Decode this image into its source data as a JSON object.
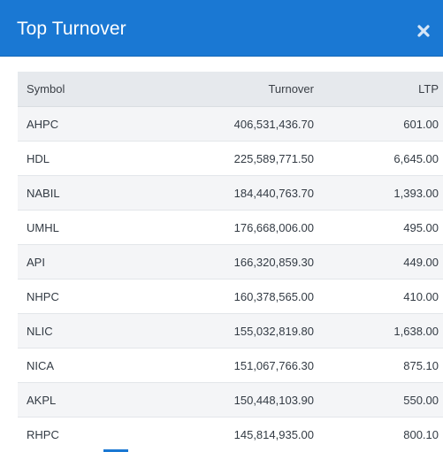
{
  "modal": {
    "title": "Top Turnover",
    "close_icon": "close-icon"
  },
  "colors": {
    "header_bg": "#1a78d3",
    "header_text": "#ffffff",
    "table_header_bg": "#e6e9ed",
    "row_alt_bg": "#f4f5f7"
  },
  "table": {
    "columns": [
      "Symbol",
      "Turnover",
      "LTP"
    ],
    "rows": [
      {
        "symbol": "AHPC",
        "turnover": "406,531,436.70",
        "ltp": "601.00"
      },
      {
        "symbol": "HDL",
        "turnover": "225,589,771.50",
        "ltp": "6,645.00"
      },
      {
        "symbol": "NABIL",
        "turnover": "184,440,763.70",
        "ltp": "1,393.00"
      },
      {
        "symbol": "UMHL",
        "turnover": "176,668,006.00",
        "ltp": "495.00"
      },
      {
        "symbol": "API",
        "turnover": "166,320,859.30",
        "ltp": "449.00"
      },
      {
        "symbol": "NHPC",
        "turnover": "160,378,565.00",
        "ltp": "410.00"
      },
      {
        "symbol": "NLIC",
        "turnover": "155,032,819.80",
        "ltp": "1,638.00"
      },
      {
        "symbol": "NICA",
        "turnover": "151,067,766.30",
        "ltp": "875.10"
      },
      {
        "symbol": "AKPL",
        "turnover": "150,448,103.90",
        "ltp": "550.00"
      },
      {
        "symbol": "RHPC",
        "turnover": "145,814,935.00",
        "ltp": "800.10"
      }
    ]
  }
}
